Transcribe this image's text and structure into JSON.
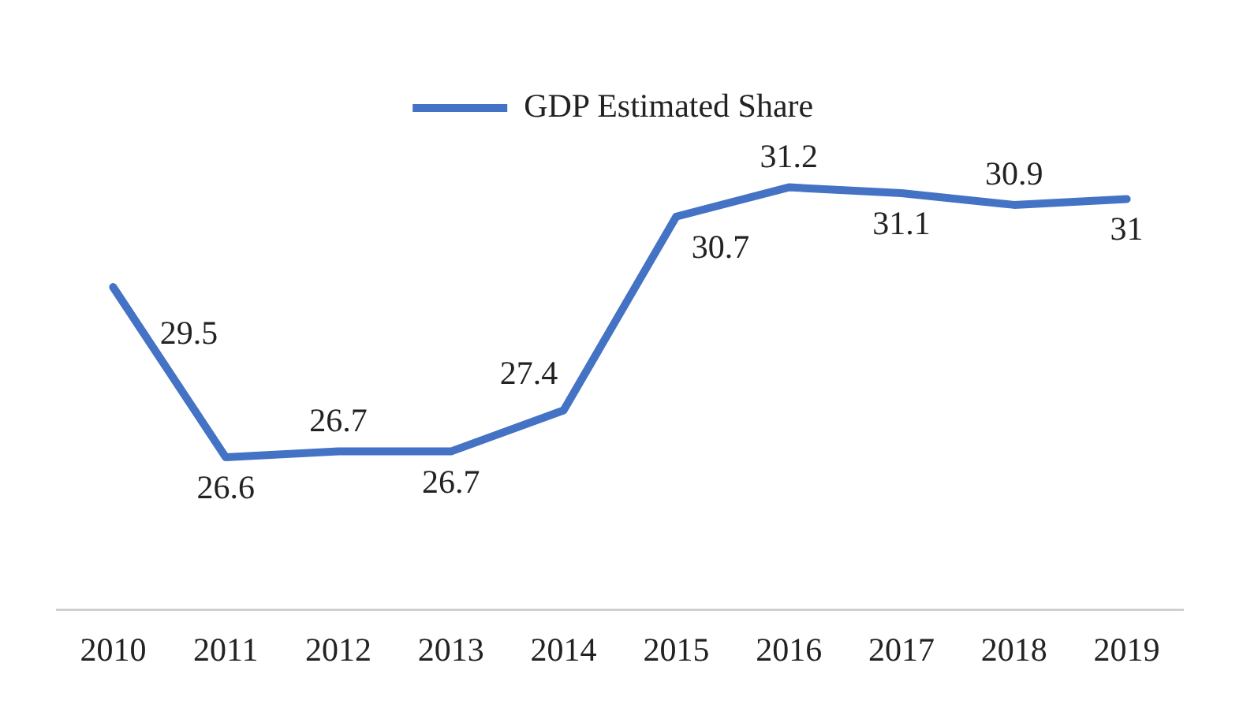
{
  "chart_data": {
    "type": "line",
    "categories": [
      "2010",
      "2011",
      "2012",
      "2013",
      "2014",
      "2015",
      "2016",
      "2017",
      "2018",
      "2019"
    ],
    "series": [
      {
        "name": "GDP Estimated Share",
        "color": "#4472c4",
        "values": [
          29.5,
          26.6,
          26.7,
          26.7,
          27.4,
          30.7,
          31.2,
          31.1,
          30.9,
          31
        ]
      }
    ],
    "relative": false,
    "data_labels": true,
    "legend": "top",
    "grid": false,
    "marker": "none",
    "line_style": "solid"
  }
}
